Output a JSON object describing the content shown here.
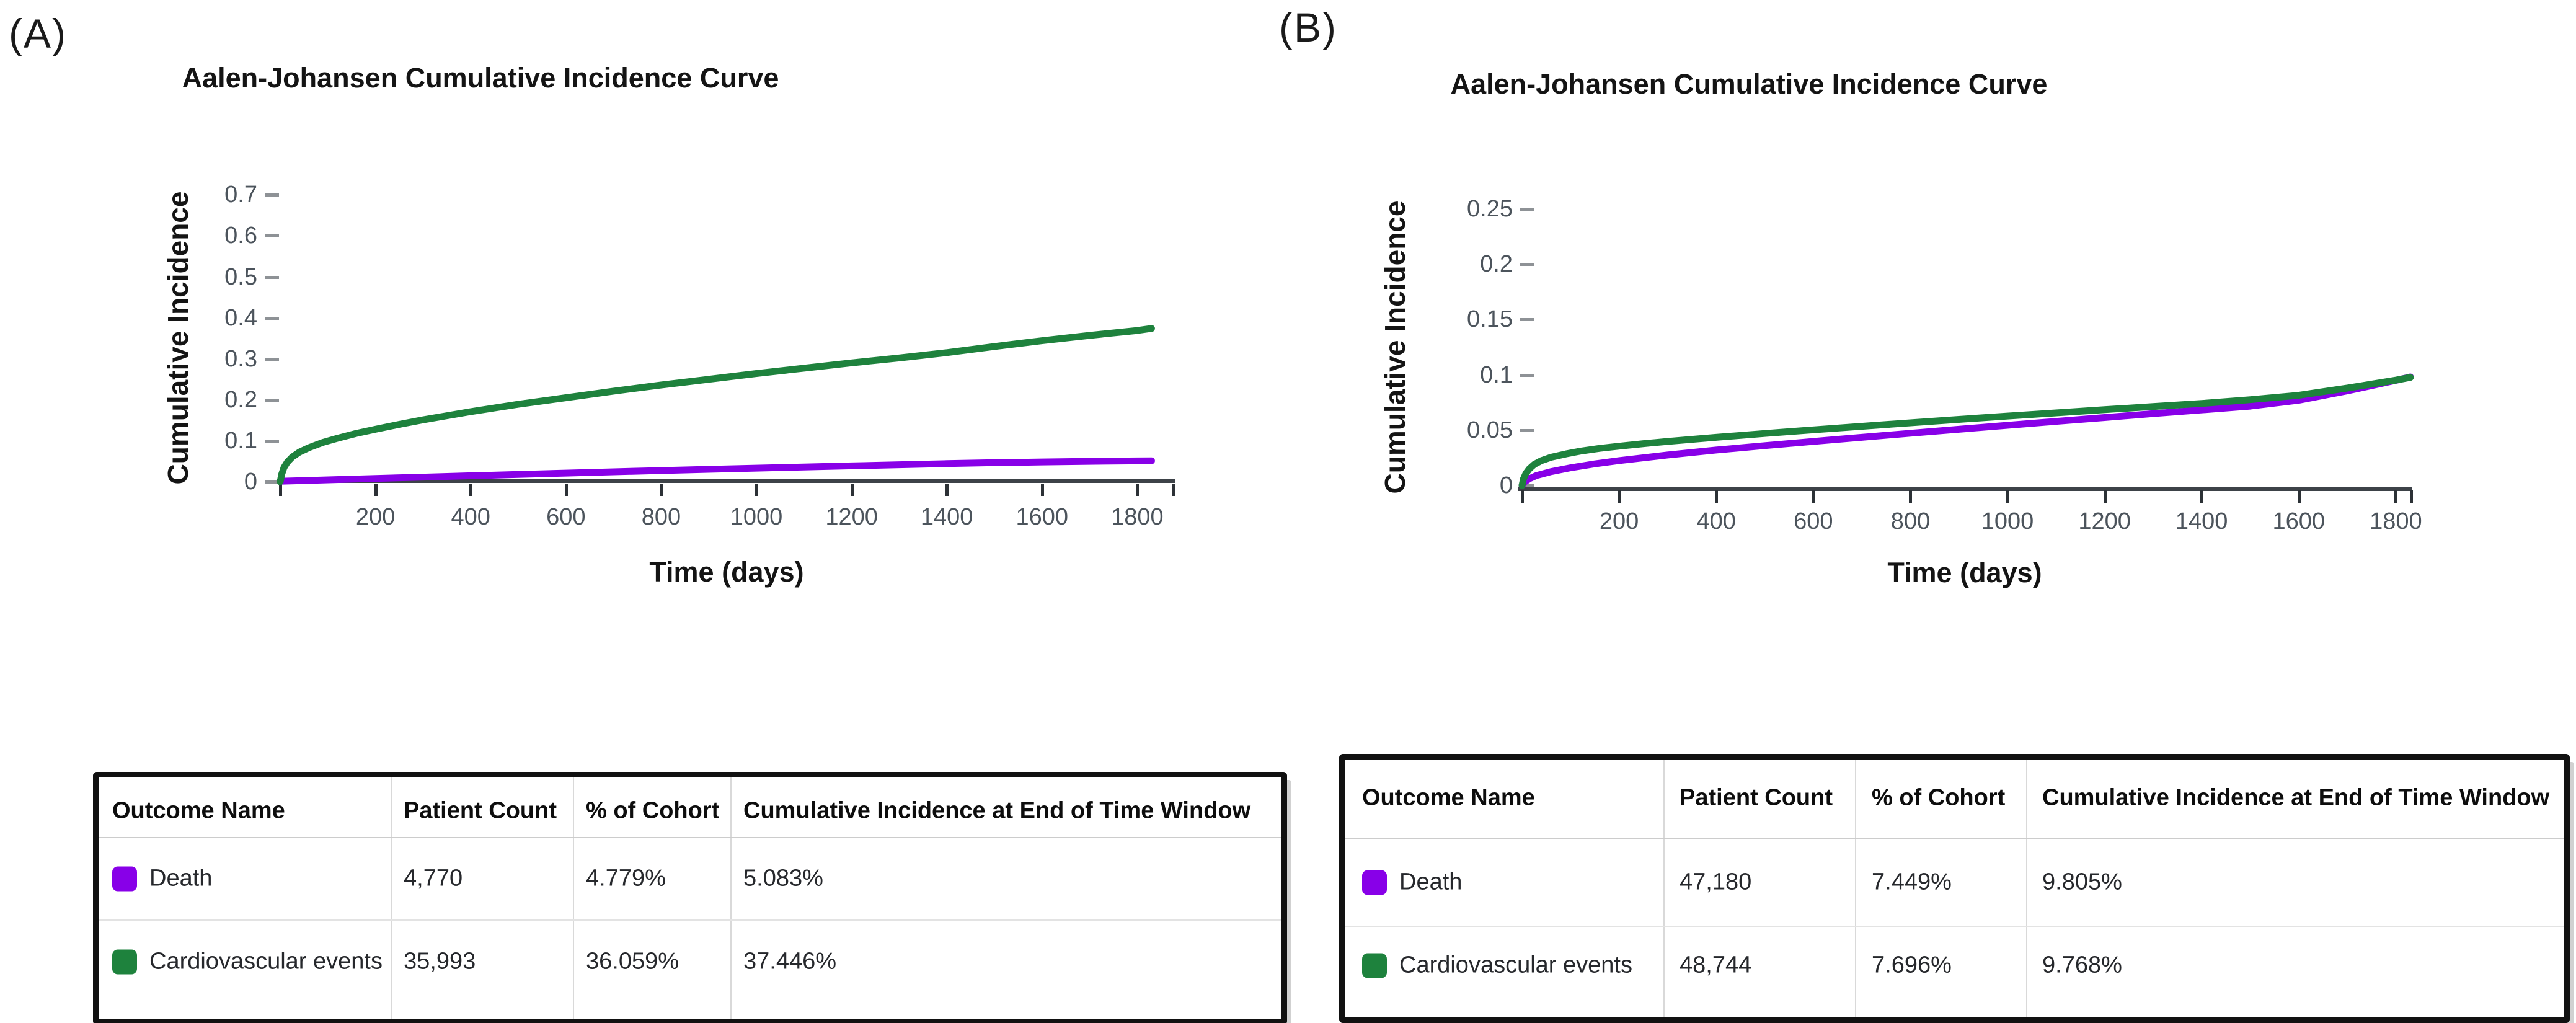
{
  "chart_data": [
    {
      "panel": "(A)",
      "type": "line",
      "title": "Aalen-Johansen Cumulative Incidence Curve",
      "xlabel": "Time (days)",
      "ylabel": "Cumulative Incidence",
      "xlim": [
        0,
        1880
      ],
      "ylim": [
        0,
        0.72
      ],
      "grid": false,
      "legend_position": "none",
      "x_ticks": [
        200,
        400,
        600,
        800,
        1000,
        1200,
        1400,
        1600,
        1800
      ],
      "y_tick_labels": [
        "0",
        "0.1",
        "0.2",
        "0.3",
        "0.4",
        "0.5",
        "0.6",
        "0.7"
      ],
      "series": [
        {
          "name": "Death",
          "color": "#8800E8",
          "points": [
            [
              0,
              0.001
            ],
            [
              100,
              0.0045
            ],
            [
              200,
              0.008
            ],
            [
              300,
              0.0112
            ],
            [
              400,
              0.0145
            ],
            [
              500,
              0.0178
            ],
            [
              600,
              0.021
            ],
            [
              700,
              0.0242
            ],
            [
              800,
              0.0272
            ],
            [
              900,
              0.0302
            ],
            [
              1000,
              0.0332
            ],
            [
              1100,
              0.036
            ],
            [
              1200,
              0.0388
            ],
            [
              1300,
              0.0415
            ],
            [
              1400,
              0.0441
            ],
            [
              1500,
              0.0465
            ],
            [
              1600,
              0.0482
            ],
            [
              1700,
              0.0497
            ],
            [
              1800,
              0.0508
            ],
            [
              1830,
              0.0512
            ]
          ]
        },
        {
          "name": "Cardiovascular events",
          "color": "#1E823D",
          "points": [
            [
              0,
              0
            ],
            [
              3,
              0.018
            ],
            [
              8,
              0.035
            ],
            [
              15,
              0.048
            ],
            [
              25,
              0.06
            ],
            [
              40,
              0.072
            ],
            [
              60,
              0.083
            ],
            [
              90,
              0.096
            ],
            [
              120,
              0.106
            ],
            [
              160,
              0.118
            ],
            [
              200,
              0.128
            ],
            [
              250,
              0.14
            ],
            [
              300,
              0.151
            ],
            [
              400,
              0.171
            ],
            [
              500,
              0.189
            ],
            [
              600,
              0.205
            ],
            [
              700,
              0.221
            ],
            [
              800,
              0.236
            ],
            [
              900,
              0.25
            ],
            [
              1000,
              0.264
            ],
            [
              1100,
              0.277
            ],
            [
              1200,
              0.29
            ],
            [
              1300,
              0.302
            ],
            [
              1400,
              0.315
            ],
            [
              1500,
              0.33
            ],
            [
              1600,
              0.344
            ],
            [
              1700,
              0.357
            ],
            [
              1800,
              0.369
            ],
            [
              1830,
              0.374
            ]
          ]
        }
      ],
      "table": {
        "headers": [
          "Outcome Name",
          "Patient Count",
          "% of Cohort",
          "Cumulative Incidence at End of Time Window"
        ],
        "rows": [
          {
            "outcome_name": "Death",
            "swatch_color": "#8800E8",
            "patient_count": "4,770",
            "pct_of_cohort": "4.779%",
            "cumulative_incidence_end": "5.083%"
          },
          {
            "outcome_name": "Cardiovascular events",
            "swatch_color": "#1E823D",
            "patient_count": "35,993",
            "pct_of_cohort": "36.059%",
            "cumulative_incidence_end": "37.446%"
          }
        ]
      }
    },
    {
      "panel": "(B)",
      "type": "line",
      "title": "Aalen-Johansen Cumulative Incidence Curve",
      "xlabel": "Time (days)",
      "ylabel": "Cumulative Incidence",
      "xlim": [
        0,
        1880
      ],
      "ylim": [
        0,
        0.26
      ],
      "grid": false,
      "legend_position": "none",
      "x_ticks": [
        200,
        400,
        600,
        800,
        1000,
        1200,
        1400,
        1600,
        1800
      ],
      "y_tick_labels": [
        "0",
        "0.05",
        "0.1",
        "0.15",
        "0.2",
        "0.25"
      ],
      "series": [
        {
          "name": "Death",
          "color": "#8800E8",
          "points": [
            [
              0,
              0
            ],
            [
              5,
              0.003
            ],
            [
              15,
              0.006
            ],
            [
              30,
              0.009
            ],
            [
              60,
              0.0125
            ],
            [
              100,
              0.016
            ],
            [
              150,
              0.0195
            ],
            [
              200,
              0.0225
            ],
            [
              300,
              0.0275
            ],
            [
              400,
              0.032
            ],
            [
              500,
              0.036
            ],
            [
              600,
              0.0398
            ],
            [
              700,
              0.0435
            ],
            [
              800,
              0.0472
            ],
            [
              900,
              0.0508
            ],
            [
              1000,
              0.0544
            ],
            [
              1100,
              0.0579
            ],
            [
              1200,
              0.0614
            ],
            [
              1300,
              0.0649
            ],
            [
              1400,
              0.0683
            ],
            [
              1500,
              0.0717
            ],
            [
              1600,
              0.077
            ],
            [
              1700,
              0.0855
            ],
            [
              1800,
              0.095
            ],
            [
              1830,
              0.0981
            ]
          ]
        },
        {
          "name": "Cardiovascular events",
          "color": "#1E823D",
          "points": [
            [
              0,
              0
            ],
            [
              3,
              0.006
            ],
            [
              8,
              0.011
            ],
            [
              15,
              0.015
            ],
            [
              25,
              0.019
            ],
            [
              40,
              0.0225
            ],
            [
              60,
              0.0255
            ],
            [
              90,
              0.0285
            ],
            [
              120,
              0.031
            ],
            [
              160,
              0.0335
            ],
            [
              200,
              0.0355
            ],
            [
              250,
              0.0378
            ],
            [
              300,
              0.0398
            ],
            [
              400,
              0.0435
            ],
            [
              500,
              0.047
            ],
            [
              600,
              0.0503
            ],
            [
              700,
              0.0535
            ],
            [
              800,
              0.0566
            ],
            [
              900,
              0.0597
            ],
            [
              1000,
              0.0627
            ],
            [
              1100,
              0.0656
            ],
            [
              1200,
              0.0685
            ],
            [
              1300,
              0.0713
            ],
            [
              1400,
              0.0741
            ],
            [
              1500,
              0.0775
            ],
            [
              1600,
              0.0815
            ],
            [
              1700,
              0.088
            ],
            [
              1800,
              0.0952
            ],
            [
              1830,
              0.0977
            ]
          ]
        }
      ],
      "table": {
        "headers": [
          "Outcome Name",
          "Patient Count",
          "% of Cohort",
          "Cumulative Incidence at End of Time Window"
        ],
        "rows": [
          {
            "outcome_name": "Death",
            "swatch_color": "#8800E8",
            "patient_count": "47,180",
            "pct_of_cohort": "7.449%",
            "cumulative_incidence_end": "9.805%"
          },
          {
            "outcome_name": "Cardiovascular events",
            "swatch_color": "#1E823D",
            "patient_count": "48,744",
            "pct_of_cohort": "7.696%",
            "cumulative_incidence_end": "9.768%"
          }
        ]
      }
    }
  ]
}
